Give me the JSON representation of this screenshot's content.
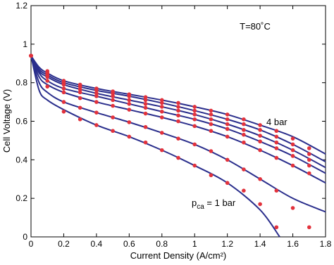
{
  "chart_data": {
    "type": "scatter",
    "xlabel": "Current Density (A/cm²)",
    "ylabel": "Cell Voltage (V)",
    "annotations": {
      "temperature": "T=80˚C",
      "top": "4 bar",
      "bottom": {
        "text": "p",
        "subscript": "ca",
        "rest": " = 1 bar"
      }
    },
    "xlim": [
      0,
      1.8
    ],
    "ylim": [
      0,
      1.2
    ],
    "xticks": [
      0,
      0.2,
      0.4,
      0.6,
      0.8,
      1,
      1.2,
      1.4,
      1.6,
      1.8
    ],
    "yticks": [
      0,
      0.2,
      0.4,
      0.6,
      0.8,
      1,
      1.2
    ],
    "marker_color": "#e2323c",
    "line_color": "#2a2e8c",
    "x": [
      0,
      0.1,
      0.2,
      0.3,
      0.4,
      0.5,
      0.6,
      0.7,
      0.8,
      0.9,
      1.0,
      1.1,
      1.2,
      1.3,
      1.4,
      1.5,
      1.6,
      1.7
    ],
    "series": [
      {
        "values": [
          0.94,
          0.86,
          0.81,
          0.79,
          0.77,
          0.755,
          0.74,
          0.725,
          0.71,
          0.695,
          0.675,
          0.655,
          0.635,
          0.61,
          0.58,
          0.55,
          0.51,
          0.46
        ],
        "fit_x": [
          0,
          0.05,
          0.1,
          0.2,
          0.4,
          0.6,
          0.8,
          1.0,
          1.2,
          1.4,
          1.6,
          1.8
        ],
        "fit_values": [
          0.94,
          0.88,
          0.85,
          0.81,
          0.77,
          0.74,
          0.71,
          0.675,
          0.635,
          0.58,
          0.52,
          0.43
        ]
      },
      {
        "values": [
          0.94,
          0.85,
          0.8,
          0.78,
          0.76,
          0.745,
          0.73,
          0.71,
          0.695,
          0.675,
          0.655,
          0.635,
          0.61,
          0.585,
          0.555,
          0.52,
          0.48,
          0.43
        ],
        "fit_x": [
          0,
          0.05,
          0.1,
          0.2,
          0.4,
          0.6,
          0.8,
          1.0,
          1.2,
          1.4,
          1.6,
          1.8
        ],
        "fit_values": [
          0.94,
          0.87,
          0.84,
          0.8,
          0.76,
          0.73,
          0.695,
          0.655,
          0.61,
          0.555,
          0.48,
          0.39
        ]
      },
      {
        "values": [
          0.94,
          0.85,
          0.79,
          0.765,
          0.745,
          0.73,
          0.71,
          0.69,
          0.675,
          0.655,
          0.635,
          0.61,
          0.585,
          0.555,
          0.525,
          0.49,
          0.45,
          0.4
        ],
        "fit_x": [
          0,
          0.05,
          0.1,
          0.2,
          0.4,
          0.6,
          0.8,
          1.0,
          1.2,
          1.4,
          1.6,
          1.8
        ],
        "fit_values": [
          0.94,
          0.86,
          0.83,
          0.79,
          0.745,
          0.71,
          0.675,
          0.635,
          0.585,
          0.525,
          0.45,
          0.36
        ]
      },
      {
        "values": [
          0.94,
          0.84,
          0.77,
          0.75,
          0.73,
          0.71,
          0.69,
          0.67,
          0.65,
          0.63,
          0.61,
          0.585,
          0.56,
          0.53,
          0.495,
          0.46,
          0.42,
          0.37
        ],
        "fit_x": [
          0,
          0.05,
          0.1,
          0.2,
          0.4,
          0.6,
          0.8,
          1.0,
          1.2,
          1.4,
          1.6,
          1.8
        ],
        "fit_values": [
          0.94,
          0.85,
          0.81,
          0.77,
          0.73,
          0.69,
          0.65,
          0.61,
          0.56,
          0.495,
          0.42,
          0.33
        ]
      },
      {
        "values": [
          0.94,
          0.83,
          0.75,
          0.72,
          0.7,
          0.68,
          0.66,
          0.64,
          0.62,
          0.6,
          0.575,
          0.55,
          0.52,
          0.49,
          0.45,
          0.41,
          0.37,
          0.33
        ],
        "fit_x": [
          0,
          0.05,
          0.1,
          0.2,
          0.4,
          0.6,
          0.8,
          1.0,
          1.2,
          1.4,
          1.6,
          1.8
        ],
        "fit_values": [
          0.94,
          0.83,
          0.79,
          0.75,
          0.7,
          0.66,
          0.62,
          0.575,
          0.52,
          0.45,
          0.37,
          0.28
        ]
      },
      {
        "values": [
          0.94,
          0.81,
          0.7,
          0.67,
          0.645,
          0.62,
          0.595,
          0.57,
          0.54,
          0.51,
          0.48,
          0.445,
          0.4,
          0.35,
          0.3,
          0.24,
          0.15,
          0.05
        ],
        "fit_x": [
          0,
          0.05,
          0.1,
          0.2,
          0.4,
          0.6,
          0.8,
          1.0,
          1.2,
          1.4,
          1.6,
          1.8
        ],
        "fit_values": [
          0.94,
          0.8,
          0.75,
          0.7,
          0.645,
          0.595,
          0.54,
          0.48,
          0.4,
          0.3,
          0.2,
          0.13
        ]
      },
      {
        "values": [
          0.94,
          0.78,
          0.65,
          0.61,
          0.58,
          0.55,
          0.52,
          0.49,
          0.45,
          0.41,
          0.37,
          0.32,
          0.28,
          0.24,
          0.17,
          0.05,
          null,
          null
        ],
        "fit_x": [
          0,
          0.05,
          0.1,
          0.2,
          0.4,
          0.6,
          0.8,
          1.0,
          1.2,
          1.4,
          1.52
        ],
        "fit_values": [
          0.94,
          0.76,
          0.71,
          0.66,
          0.58,
          0.52,
          0.45,
          0.37,
          0.28,
          0.14,
          0
        ]
      }
    ]
  }
}
